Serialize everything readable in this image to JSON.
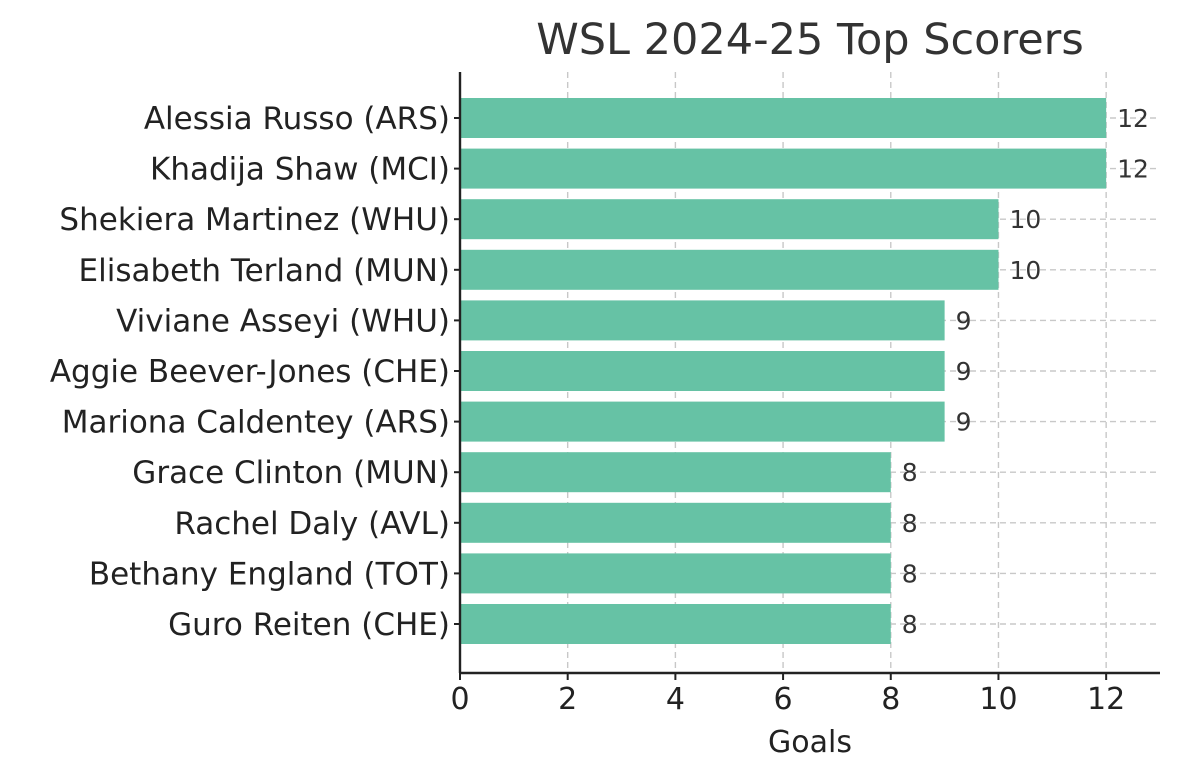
{
  "chart_data": {
    "type": "bar",
    "orientation": "horizontal",
    "title": "WSL 2024-25 Top Scorers",
    "xlabel": "Goals",
    "ylabel": "",
    "xlim": [
      0,
      13
    ],
    "xticks": [
      0,
      2,
      4,
      6,
      8,
      10,
      12
    ],
    "grid": true,
    "bar_color": "#66c2a5",
    "categories": [
      "Alessia Russo (ARS)",
      "Khadija Shaw (MCI)",
      "Shekiera Martinez (WHU)",
      "Elisabeth Terland (MUN)",
      "Viviane Asseyi (WHU)",
      "Aggie Beever-Jones (CHE)",
      "Mariona Caldentey (ARS)",
      "Grace Clinton (MUN)",
      "Rachel Daly (AVL)",
      "Bethany England (TOT)",
      "Guro Reiten (CHE)"
    ],
    "values": [
      12,
      12,
      10,
      10,
      9,
      9,
      9,
      8,
      8,
      8,
      8
    ]
  }
}
